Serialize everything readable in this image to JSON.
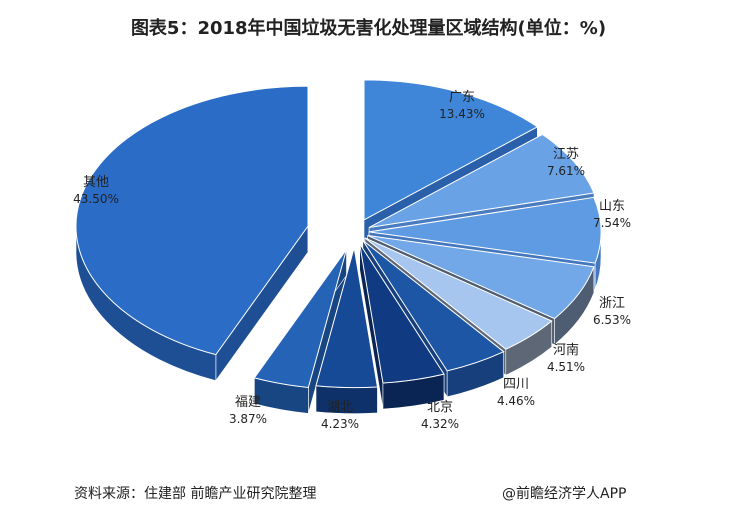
{
  "title": "图表5：2018年中国垃圾无害化处理量区域结构(单位：%)",
  "source": "资料来源：住建部 前瞻产业研究院整理",
  "credit": "@前瞻经济学人APP",
  "chart_data": {
    "type": "pie",
    "categories": [
      "广东",
      "江苏",
      "山东",
      "浙江",
      "河南",
      "四川",
      "北京",
      "湖北",
      "福建",
      "其他"
    ],
    "values": [
      13.43,
      7.61,
      7.54,
      6.53,
      4.51,
      4.46,
      4.32,
      4.23,
      3.87,
      43.5
    ],
    "value_labels": [
      "13.43%",
      "7.61%",
      "7.54%",
      "6.53%",
      "4.51%",
      "4.46%",
      "4.32%",
      "4.23%",
      "3.87%",
      "43.50%"
    ],
    "exploded": true,
    "colors": [
      "#3f86d8",
      "#6aa2e6",
      "#5f9be3",
      "#73a8e8",
      "#a6c6ef",
      "#1d56a4",
      "#103a82",
      "#174a96",
      "#2563b7",
      "#2b6cc6"
    ],
    "side_colors": [
      "#2a5faa",
      "#4a7cc0",
      "#4477bd",
      "#4f5d72",
      "#5e6776",
      "#163f7c",
      "#0a2554",
      "#0f3169",
      "#174683",
      "#1e4f95"
    ]
  }
}
